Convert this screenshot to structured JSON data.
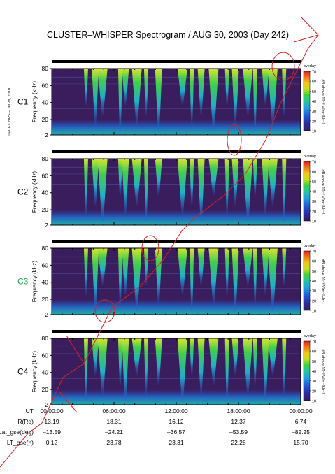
{
  "title": "CLUSTER–WHISPER Spectrogram / AUG 30, 2003 (Day 242)",
  "credit": "LPCE/CNRS – Jul 28, 2010",
  "colors": {
    "C1": "#000000",
    "C2": "#000000",
    "C3": "#1fa64a",
    "C4": "#000000",
    "background": "#3a1d5c",
    "annotation": "#e02020"
  },
  "chart_data": {
    "type": "heatmap",
    "panels": [
      {
        "label": "C1",
        "ylabel": "Frequency (kHz)",
        "ylim": [
          2,
          80
        ],
        "yticks": [
          2,
          20,
          40,
          60,
          80
        ],
        "colorbar_label": "dB above 10⁻⁸ V²m⁻²Hz⁻¹",
        "colorbar_title": "overlay",
        "colorbar_ticks": [
          10,
          20,
          30,
          40,
          50,
          60,
          70
        ]
      },
      {
        "label": "C2",
        "ylabel": "Frequency (kHz)",
        "ylim": [
          2,
          80
        ],
        "yticks": [
          2,
          20,
          40,
          60,
          80
        ],
        "colorbar_label": "dB above 10⁻⁸ V²m⁻²Hz⁻¹",
        "colorbar_title": "overlay",
        "colorbar_ticks": [
          10,
          20,
          30,
          40,
          50,
          60,
          70
        ]
      },
      {
        "label": "C3",
        "ylabel": "Frequency (kHz)",
        "ylim": [
          2,
          80
        ],
        "yticks": [
          2,
          20,
          40,
          60,
          80
        ],
        "colorbar_label": "dB above 10⁻⁸ V²m⁻²Hz⁻¹",
        "colorbar_title": "overlay",
        "colorbar_ticks": [
          10,
          20,
          30,
          40,
          50,
          60,
          70
        ]
      },
      {
        "label": "C4",
        "ylabel": "Frequency (kHz)",
        "ylim": [
          2,
          80
        ],
        "yticks": [
          2,
          20,
          40,
          60,
          80
        ],
        "colorbar_label": "dB above 10⁻⁸ V²m⁻²Hz⁻¹",
        "colorbar_title": "overlay",
        "colorbar_ticks": [
          10,
          20,
          30,
          40,
          50,
          60,
          70
        ]
      }
    ],
    "x_ticks": [
      "00:00:00",
      "06:00:00",
      "12:00:00",
      "18:00:00",
      "00:00:00"
    ],
    "colorbar_range": [
      10,
      70
    ],
    "colorbar_scale": [
      "#3a1d5c",
      "#2a2aa0",
      "#1e5ad8",
      "#1fa0e0",
      "#22c8a0",
      "#3ed23a",
      "#c8e020",
      "#f0c818",
      "#f07818",
      "#e02020"
    ],
    "bursts_hours": [
      3.3,
      4.2,
      4.9,
      6.6,
      7.1,
      8.2,
      9.1,
      10.3,
      12.6,
      13.5,
      14.4,
      15.6,
      16.9,
      17.7,
      18.9,
      19.6,
      20.6,
      21.3,
      22.4
    ],
    "ephemeris": {
      "row_labels": [
        "UT",
        "R(Re)",
        "Lat_gse(deg)",
        "LT_gse(h)"
      ],
      "columns": [
        {
          "UT": "00:00:00",
          "R": "13.19",
          "Lat": "–13.59",
          "LT": "0.12"
        },
        {
          "UT": "06:00:00",
          "R": "18.31",
          "Lat": "–24.21",
          "LT": "23.78"
        },
        {
          "UT": "12:00:00",
          "R": "16.12",
          "Lat": "–36.57",
          "LT": "23.31"
        },
        {
          "UT": "18:00:00",
          "R": "12.37",
          "Lat": "–53.59",
          "LT": "22.28"
        },
        {
          "UT": "00:00:00",
          "R": "6.74",
          "Lat": "–82.25",
          "LT": "15.70"
        }
      ]
    }
  }
}
